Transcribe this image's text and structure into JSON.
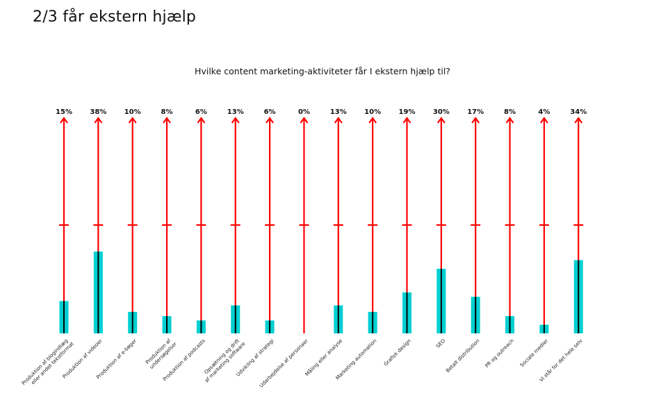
{
  "page_title": "2/3 får ekstern hjælp",
  "chart_data": {
    "type": "bar",
    "title": "Hvilke content marketing-aktiviteter får I ekstern hjælp til?",
    "ylim": [
      0,
      100
    ],
    "value_suffix": "%",
    "categories": [
      [
        "Produktion af blogindlæg",
        "eller andet tekstformat"
      ],
      [
        "Produktion af videoer"
      ],
      [
        "Produktion af e-bøger"
      ],
      [
        "Produktion af",
        "undersøgelser"
      ],
      [
        "Produktion af podcasts"
      ],
      [
        "Opsætning og drift",
        "af marketing software"
      ],
      [
        "Udvikling af strategi"
      ],
      [
        "Udarbejdelse af personaer"
      ],
      [
        "Måling eller analyse"
      ],
      [
        "Marketing automation"
      ],
      [
        "Grafisk design"
      ],
      [
        "SEO"
      ],
      [
        "Betalt distribution"
      ],
      [
        "PR og outreach"
      ],
      [
        "Sociale medier"
      ],
      [
        "Vi står for det hele selv"
      ]
    ],
    "values": [
      15,
      38,
      10,
      8,
      6,
      13,
      6,
      0,
      13,
      10,
      19,
      30,
      17,
      8,
      4,
      34
    ],
    "colors": {
      "bar": "#00cfd1",
      "axis_line": "#ff0000",
      "center_line": "#000000"
    }
  }
}
